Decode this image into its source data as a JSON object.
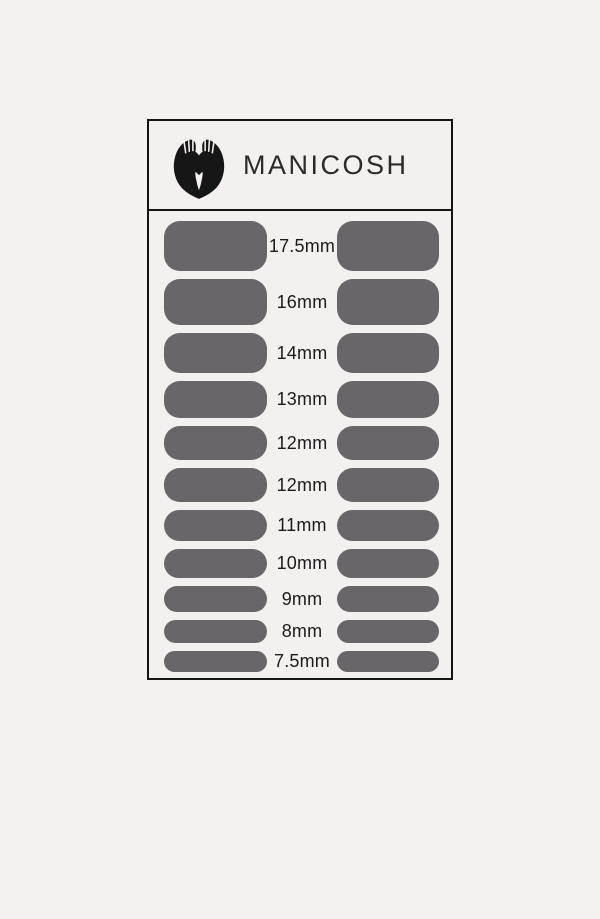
{
  "brand": {
    "name": "MANICOSH",
    "logo_icon": "hands-holding-heart-icon"
  },
  "size_chart": {
    "rows": [
      {
        "label": "17.5mm",
        "mm": 17.5
      },
      {
        "label": "16mm",
        "mm": 16
      },
      {
        "label": "14mm",
        "mm": 14
      },
      {
        "label": "13mm",
        "mm": 13
      },
      {
        "label": "12mm",
        "mm": 12
      },
      {
        "label": "12mm",
        "mm": 12
      },
      {
        "label": "11mm",
        "mm": 11
      },
      {
        "label": "10mm",
        "mm": 10
      },
      {
        "label": "9mm",
        "mm": 9
      },
      {
        "label": "8mm",
        "mm": 8
      },
      {
        "label": "7.5mm",
        "mm": 7.5
      }
    ],
    "strip_color": "#6a6569"
  },
  "colors": {
    "page_background": "#f4f1f0",
    "card_background": "#f3f0ef",
    "border": "#141414",
    "label_text": "#1b1b1b",
    "brand_text": "#2a2a2a"
  }
}
